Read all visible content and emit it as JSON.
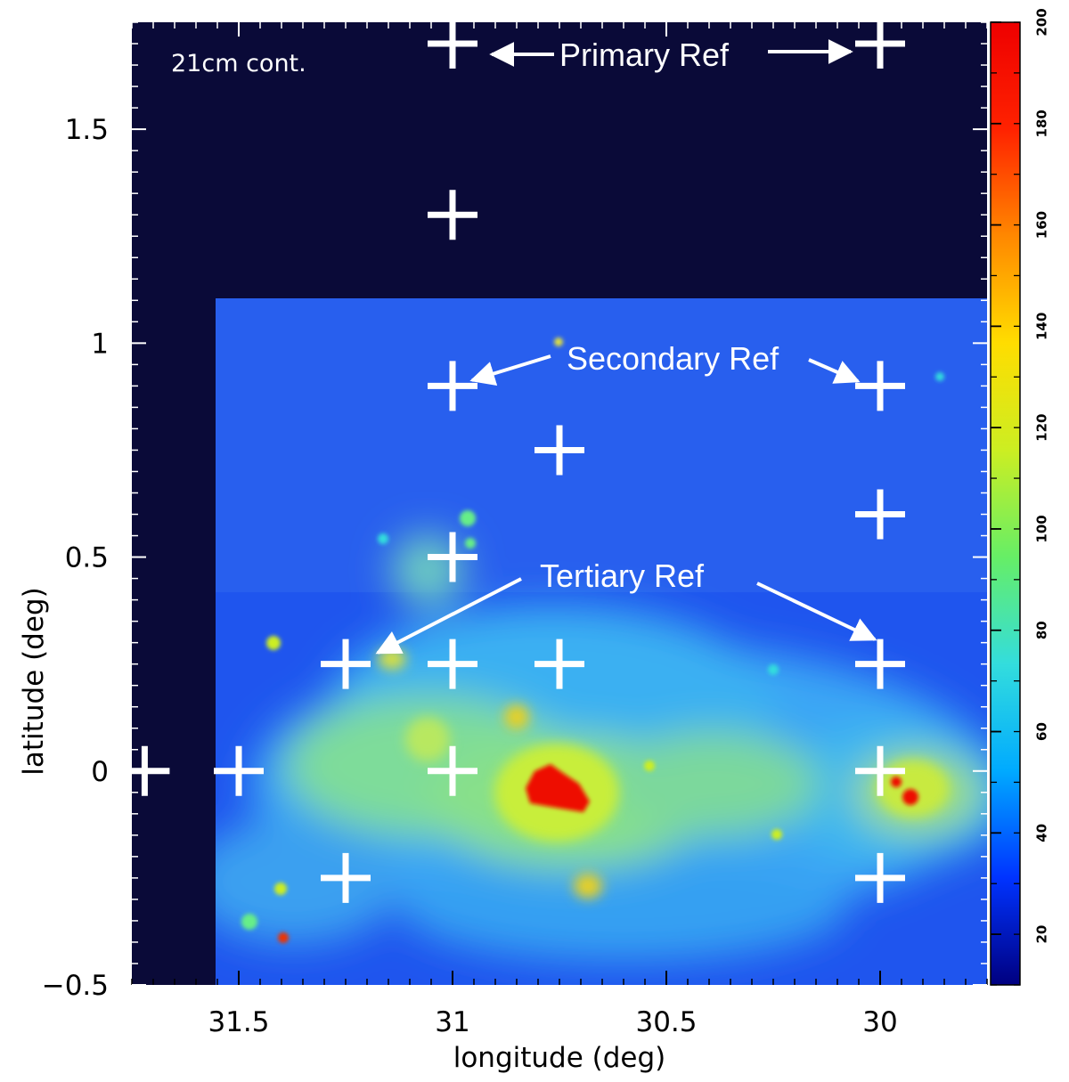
{
  "chart_data": {
    "type": "heatmap",
    "title": "",
    "map_label": "21cm cont.",
    "xlabel": "longitude (deg)",
    "ylabel": "latitude (deg)",
    "xlim": [
      31.75,
      29.75
    ],
    "ylim": [
      -0.5,
      1.75
    ],
    "x_ticks": [
      {
        "value": 31.5,
        "label": "31.5"
      },
      {
        "value": 31.0,
        "label": "31"
      },
      {
        "value": 30.5,
        "label": "30.5"
      },
      {
        "value": 30.0,
        "label": "30"
      }
    ],
    "y_ticks": [
      {
        "value": 1.5,
        "label": "1.5"
      },
      {
        "value": 1.0,
        "label": "1"
      },
      {
        "value": 0.5,
        "label": "0.5"
      },
      {
        "value": 0.0,
        "label": "0"
      },
      {
        "value": -0.5,
        "label": "−0.5"
      }
    ],
    "colorbar": {
      "range": [
        10,
        200
      ],
      "ticks": [
        {
          "value": 20,
          "label": "20"
        },
        {
          "value": 40,
          "label": "40"
        },
        {
          "value": 60,
          "label": "60"
        },
        {
          "value": 80,
          "label": "80"
        },
        {
          "value": 100,
          "label": "100"
        },
        {
          "value": 120,
          "label": "120"
        },
        {
          "value": 140,
          "label": "140"
        },
        {
          "value": 160,
          "label": "160"
        },
        {
          "value": 180,
          "label": "180"
        },
        {
          "value": 200,
          "label": "200"
        }
      ],
      "colors": [
        "#000080",
        "#0033ff",
        "#00aaff",
        "#33dddd",
        "#66ee66",
        "#ccee22",
        "#ffdd00",
        "#ff8800",
        "#ff2200",
        "#ee0000"
      ]
    },
    "data_extent": {
      "lon": [
        31.55,
        29.77
      ],
      "lat": [
        -0.5,
        1.1
      ]
    },
    "background_color": "#0a0a38",
    "reference_points": [
      {
        "lon": 31.0,
        "lat": 1.7,
        "kind": "primary"
      },
      {
        "lon": 30.0,
        "lat": 1.7,
        "kind": "primary"
      },
      {
        "lon": 31.0,
        "lat": 1.3,
        "kind": "primary"
      },
      {
        "lon": 31.0,
        "lat": 0.9,
        "kind": "secondary"
      },
      {
        "lon": 30.0,
        "lat": 0.9,
        "kind": "secondary"
      },
      {
        "lon": 30.75,
        "lat": 0.75,
        "kind": "secondary"
      },
      {
        "lon": 30.0,
        "lat": 0.6,
        "kind": "secondary"
      },
      {
        "lon": 31.0,
        "lat": 0.5,
        "kind": "secondary"
      },
      {
        "lon": 31.25,
        "lat": 0.25,
        "kind": "tertiary"
      },
      {
        "lon": 31.0,
        "lat": 0.25,
        "kind": "tertiary"
      },
      {
        "lon": 30.75,
        "lat": 0.25,
        "kind": "tertiary"
      },
      {
        "lon": 30.0,
        "lat": 0.25,
        "kind": "tertiary"
      },
      {
        "lon": 31.72,
        "lat": 0.0,
        "kind": "tertiary"
      },
      {
        "lon": 31.5,
        "lat": 0.0,
        "kind": "tertiary"
      },
      {
        "lon": 31.0,
        "lat": 0.0,
        "kind": "tertiary"
      },
      {
        "lon": 30.0,
        "lat": 0.0,
        "kind": "tertiary"
      },
      {
        "lon": 31.25,
        "lat": -0.25,
        "kind": "tertiary"
      },
      {
        "lon": 30.0,
        "lat": -0.25,
        "kind": "tertiary"
      }
    ],
    "annotations": [
      {
        "text": "Primary Ref"
      },
      {
        "text": "Secondary Ref"
      },
      {
        "text": "Tertiary Ref"
      }
    ]
  }
}
